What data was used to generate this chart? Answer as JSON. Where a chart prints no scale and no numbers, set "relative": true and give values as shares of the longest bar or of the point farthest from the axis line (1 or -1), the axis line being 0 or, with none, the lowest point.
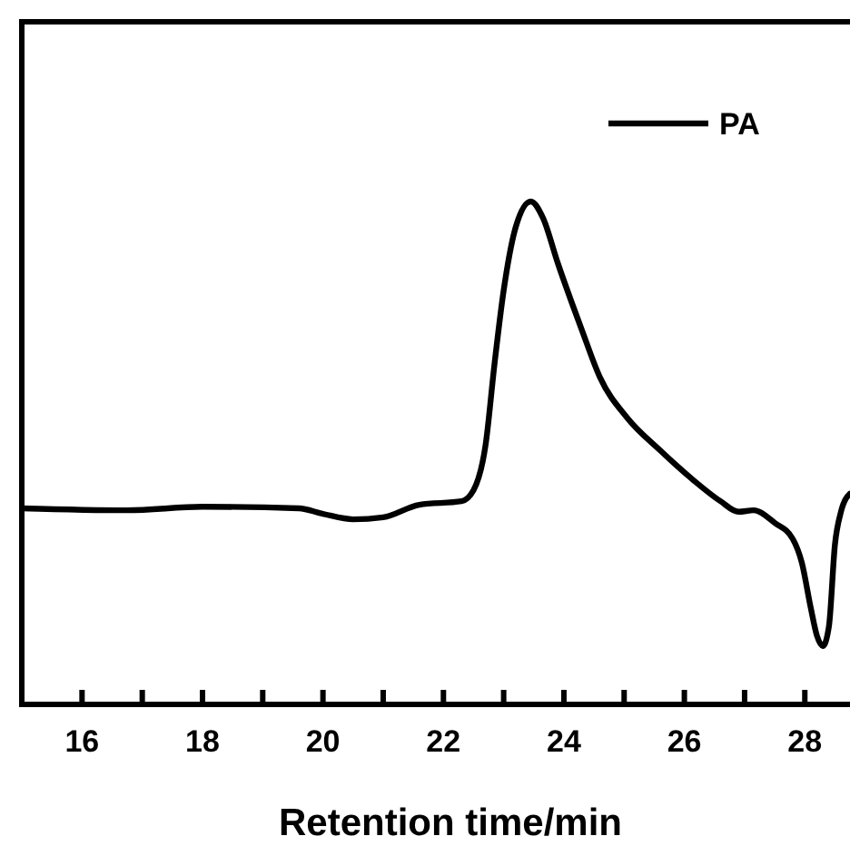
{
  "chart_data": {
    "type": "line",
    "xlabel": "Retention time/min",
    "relative": true,
    "legend": "top right",
    "line_style": "solid",
    "marker": "none",
    "grid": false,
    "tick_labels": "x",
    "xlim": [
      15,
      28.75
    ],
    "xticks": [
      16,
      {
        "value": 17,
        "label": null
      },
      18,
      {
        "value": 19,
        "label": null
      },
      20,
      {
        "value": 21,
        "label": null
      },
      22,
      {
        "value": 23,
        "label": null
      },
      24,
      {
        "value": 25,
        "label": null
      },
      26,
      {
        "value": 27,
        "label": null
      },
      28
    ],
    "series": [
      {
        "name": "PA",
        "color": "#000000",
        "x": [
          15,
          16.75,
          18,
          19.6,
          20,
          20.5,
          21,
          21.6,
          22.3,
          22.5,
          22.7,
          22.85,
          23,
          23.2,
          23.45,
          23.65,
          23.9,
          24.3,
          24.6,
          25.05,
          25.6,
          26.1,
          26.6,
          26.9,
          27.15,
          27.5,
          27.8,
          27.95,
          28.1,
          28.2,
          28.3,
          28.4,
          28.5,
          28.6,
          28.75
        ],
        "values": [
          0.39,
          0.386,
          0.393,
          0.39,
          0.379,
          0.368,
          0.372,
          0.397,
          0.404,
          0.426,
          0.516,
          0.679,
          0.823,
          0.949,
          1,
          0.968,
          0.877,
          0.744,
          0.65,
          0.57,
          0.505,
          0.451,
          0.404,
          0.383,
          0.386,
          0.361,
          0.329,
          0.282,
          0.191,
          0.137,
          0.116,
          0.155,
          0.318,
          0.383,
          0.419
        ]
      }
    ]
  }
}
